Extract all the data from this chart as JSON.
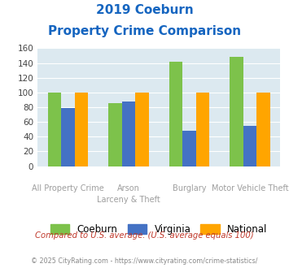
{
  "title_line1": "2019 Coeburn",
  "title_line2": "Property Crime Comparison",
  "cat_labels_top": [
    "",
    "Arson",
    "",
    ""
  ],
  "cat_labels_bottom": [
    "All Property Crime",
    "Larceny & Theft",
    "Burglary",
    "Motor Vehicle Theft"
  ],
  "coeburn": [
    100,
    85,
    142,
    148
  ],
  "virginia": [
    79,
    88,
    48,
    55
  ],
  "national": [
    100,
    100,
    100,
    100
  ],
  "coeburn_color": "#7dc24b",
  "virginia_color": "#4472c4",
  "national_color": "#ffa500",
  "bg_color": "#dce9f0",
  "ylim": [
    0,
    160
  ],
  "yticks": [
    0,
    20,
    40,
    60,
    80,
    100,
    120,
    140,
    160
  ],
  "title_color": "#1565c0",
  "xlabel_color": "#9e9e9e",
  "legend_labels": [
    "Coeburn",
    "Virginia",
    "National"
  ],
  "footnote1": "Compared to U.S. average. (U.S. average equals 100)",
  "footnote2": "© 2025 CityRating.com - https://www.cityrating.com/crime-statistics/",
  "footnote1_color": "#c0392b",
  "footnote2_color": "#888888"
}
